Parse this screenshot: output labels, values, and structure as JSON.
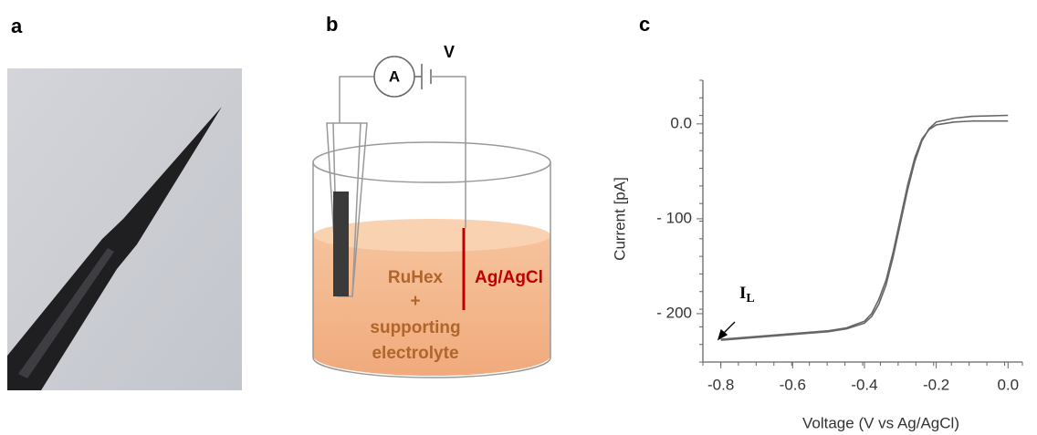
{
  "panel_a": {
    "label": "a"
  },
  "panel_b": {
    "label": "b",
    "ammeter": "A",
    "voltage": "V",
    "solution": [
      "RuHex",
      "+",
      "supporting",
      "electrolyte"
    ],
    "reference": "Ag/AgCl"
  },
  "chart_data": {
    "type": "line",
    "label": "c",
    "x_label": "Voltage (V vs Ag/AgCl)",
    "y_label": "Current [pA]",
    "annotation": {
      "text": "I",
      "subscript": "L"
    },
    "x": [
      -0.8,
      -0.7,
      -0.6,
      -0.5,
      -0.45,
      -0.4,
      -0.38,
      -0.36,
      -0.34,
      -0.32,
      -0.3,
      -0.28,
      -0.26,
      -0.24,
      -0.22,
      -0.2,
      -0.15,
      -0.1,
      0
    ],
    "series": [
      {
        "color": "#666666",
        "values": [
          -228,
          -225,
          -222,
          -219,
          -216,
          -210,
          -203,
          -190,
          -170,
          -140,
          -105,
          -70,
          -40,
          -18,
          -5,
          2,
          6,
          8,
          9
        ]
      },
      {
        "color": "#666666",
        "values": [
          -227,
          -224,
          -221,
          -218,
          -215,
          -208,
          -200,
          -185,
          -165,
          -135,
          -100,
          -65,
          -36,
          -16,
          -6,
          -1,
          2,
          3,
          3
        ]
      }
    ],
    "xlim": [
      -0.85,
      0.04
    ],
    "ylim": [
      -251,
      46
    ],
    "xticks": [
      -0.8,
      -0.6,
      -0.4,
      -0.2,
      {
        "value": 0,
        "label": "0.0"
      }
    ],
    "yticks": [
      {
        "value": 0,
        "label": "0.0"
      },
      {
        "value": -100,
        "label": "- 100"
      },
      {
        "value": -200,
        "label": "- 200"
      }
    ]
  }
}
